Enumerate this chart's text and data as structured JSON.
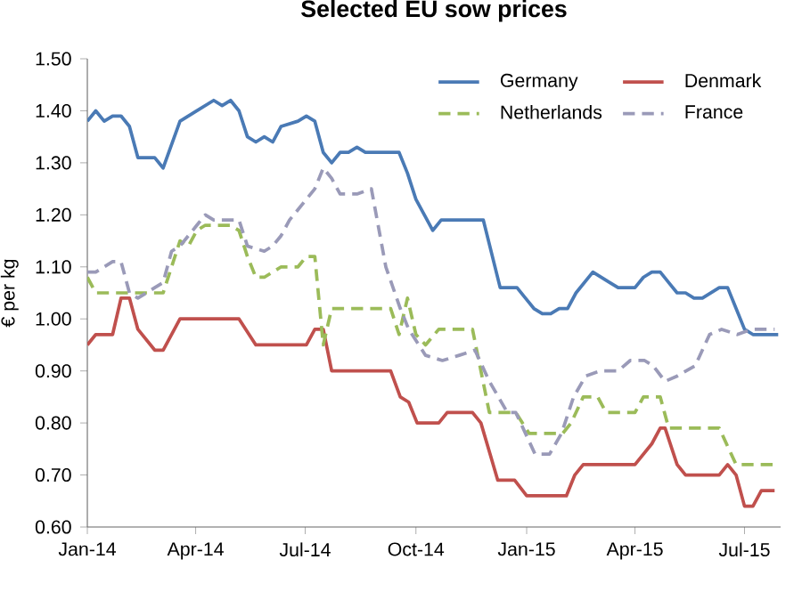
{
  "chart_data": {
    "type": "line",
    "title": "Selected EU sow prices",
    "ylabel": "€ per kg",
    "x": [
      "2014-01-01",
      "2014-01-08",
      "2014-01-15",
      "2014-01-22",
      "2014-01-29",
      "2014-02-05",
      "2014-02-12",
      "2014-02-26",
      "2014-03-05",
      "2014-03-19",
      "2014-04-02",
      "2014-04-16",
      "2014-04-23",
      "2014-04-30",
      "2014-05-07",
      "2014-05-14",
      "2014-05-21",
      "2014-05-28",
      "2014-06-04",
      "2014-06-11",
      "2014-06-25",
      "2014-07-02",
      "2014-07-09",
      "2014-07-16",
      "2014-07-23",
      "2014-07-30",
      "2014-08-06",
      "2014-08-13",
      "2014-08-20",
      "2014-09-17",
      "2014-09-24",
      "2014-10-01",
      "2014-10-08",
      "2014-10-15",
      "2014-10-22",
      "2014-11-26",
      "2014-12-10",
      "2014-12-24",
      "2014-12-31",
      "2015-01-07",
      "2015-01-14",
      "2015-01-21",
      "2015-01-28",
      "2015-02-04",
      "2015-02-11",
      "2015-02-25",
      "2015-03-04",
      "2015-03-11",
      "2015-03-18",
      "2015-04-01",
      "2015-04-08",
      "2015-04-15",
      "2015-04-22",
      "2015-04-29",
      "2015-05-06",
      "2015-05-13",
      "2015-05-20",
      "2015-05-27",
      "2015-06-03",
      "2015-06-10",
      "2015-06-17",
      "2015-06-24",
      "2015-07-01",
      "2015-07-08",
      "2015-07-29"
    ],
    "series": [
      {
        "name": "Germany",
        "color": "#4a7ab5",
        "line_style": "solid",
        "values": [
          1.38,
          1.4,
          1.38,
          1.39,
          1.39,
          1.37,
          1.31,
          1.31,
          1.29,
          1.38,
          1.4,
          1.42,
          1.41,
          1.42,
          1.4,
          1.35,
          1.34,
          1.35,
          1.34,
          1.37,
          1.38,
          1.39,
          1.38,
          1.32,
          1.3,
          1.32,
          1.32,
          1.33,
          1.32,
          1.32,
          1.28,
          1.23,
          1.2,
          1.17,
          1.19,
          1.19,
          1.06,
          1.06,
          1.04,
          1.02,
          1.01,
          1.01,
          1.02,
          1.02,
          1.05,
          1.09,
          1.08,
          1.07,
          1.06,
          1.06,
          1.08,
          1.09,
          1.09,
          1.07,
          1.05,
          1.05,
          1.04,
          1.04,
          1.05,
          1.06,
          1.06,
          1.02,
          0.98,
          0.97,
          0.97
        ]
      },
      {
        "name": "Denmark",
        "color": "#c0504d",
        "line_style": "solid",
        "x": [
          "2014-01-01",
          "2014-01-08",
          "2014-01-22",
          "2014-01-29",
          "2014-02-05",
          "2014-02-12",
          "2014-02-26",
          "2014-03-05",
          "2014-03-19",
          "2014-04-30",
          "2014-05-07",
          "2014-05-21",
          "2014-07-02",
          "2014-07-09",
          "2014-07-16",
          "2014-07-23",
          "2014-09-10",
          "2014-09-18",
          "2014-09-25",
          "2014-10-02",
          "2014-10-20",
          "2014-10-27",
          "2014-11-17",
          "2014-11-24",
          "2014-12-08",
          "2014-12-22",
          "2015-01-01",
          "2015-02-03",
          "2015-02-10",
          "2015-02-17",
          "2015-04-01",
          "2015-04-15",
          "2015-04-22",
          "2015-04-26",
          "2015-05-06",
          "2015-05-13",
          "2015-06-10",
          "2015-06-17",
          "2015-06-24",
          "2015-07-01",
          "2015-07-08",
          "2015-07-15",
          "2015-07-26"
        ],
        "values": [
          0.95,
          0.97,
          0.97,
          1.04,
          1.04,
          0.98,
          0.94,
          0.94,
          1.0,
          1.0,
          1.0,
          0.95,
          0.95,
          0.98,
          0.98,
          0.9,
          0.9,
          0.85,
          0.84,
          0.8,
          0.8,
          0.82,
          0.82,
          0.8,
          0.69,
          0.69,
          0.66,
          0.66,
          0.7,
          0.72,
          0.72,
          0.76,
          0.79,
          0.79,
          0.72,
          0.7,
          0.7,
          0.72,
          0.7,
          0.64,
          0.64,
          0.67,
          0.67
        ]
      },
      {
        "name": "Netherlands",
        "color": "#9bbb59",
        "line_style": "dashed",
        "x": [
          "2014-01-01",
          "2014-01-08",
          "2014-03-05",
          "2014-03-12",
          "2014-03-19",
          "2014-03-26",
          "2014-04-02",
          "2014-04-09",
          "2014-04-30",
          "2014-05-07",
          "2014-05-14",
          "2014-05-21",
          "2014-05-28",
          "2014-06-11",
          "2014-06-25",
          "2014-07-02",
          "2014-07-09",
          "2014-07-16",
          "2014-07-23",
          "2014-09-10",
          "2014-09-17",
          "2014-09-24",
          "2014-10-01",
          "2014-10-09",
          "2014-10-20",
          "2014-11-17",
          "2014-12-01",
          "2014-12-23",
          "2015-01-03",
          "2015-01-31",
          "2015-02-07",
          "2015-02-17",
          "2015-03-01",
          "2015-03-08",
          "2015-04-01",
          "2015-04-08",
          "2015-04-22",
          "2015-04-29",
          "2015-06-10",
          "2015-06-24",
          "2015-07-26"
        ],
        "values": [
          1.08,
          1.05,
          1.05,
          1.1,
          1.15,
          1.14,
          1.17,
          1.18,
          1.18,
          1.17,
          1.12,
          1.08,
          1.08,
          1.1,
          1.1,
          1.12,
          1.12,
          0.95,
          1.02,
          1.02,
          0.97,
          1.04,
          0.97,
          0.95,
          0.98,
          0.98,
          0.82,
          0.82,
          0.78,
          0.78,
          0.8,
          0.85,
          0.85,
          0.82,
          0.82,
          0.85,
          0.85,
          0.79,
          0.79,
          0.72,
          0.72
        ]
      },
      {
        "name": "France",
        "color": "#9a9ab8",
        "line_style": "dashed",
        "x": [
          "2014-01-01",
          "2014-01-08",
          "2014-01-22",
          "2014-01-29",
          "2014-02-05",
          "2014-02-12",
          "2014-02-19",
          "2014-02-26",
          "2014-03-05",
          "2014-03-12",
          "2014-03-19",
          "2014-04-02",
          "2014-04-09",
          "2014-04-16",
          "2014-05-07",
          "2014-05-14",
          "2014-05-28",
          "2014-06-04",
          "2014-06-11",
          "2014-06-18",
          "2014-07-02",
          "2014-07-09",
          "2014-07-16",
          "2014-07-23",
          "2014-07-30",
          "2014-08-13",
          "2014-08-25",
          "2014-09-06",
          "2014-09-18",
          "2014-09-25",
          "2014-10-09",
          "2014-10-23",
          "2014-11-06",
          "2014-11-19",
          "2014-12-01",
          "2014-12-16",
          "2014-12-23",
          "2015-01-08",
          "2015-01-20",
          "2015-01-30",
          "2015-02-09",
          "2015-02-19",
          "2015-03-03",
          "2015-03-18",
          "2015-03-28",
          "2015-04-09",
          "2015-04-16",
          "2015-04-26",
          "2015-05-06",
          "2015-05-21",
          "2015-06-02",
          "2015-06-12",
          "2015-06-25",
          "2015-07-07",
          "2015-07-26"
        ],
        "values": [
          1.09,
          1.09,
          1.11,
          1.11,
          1.05,
          1.04,
          1.05,
          1.06,
          1.07,
          1.13,
          1.14,
          1.18,
          1.2,
          1.19,
          1.19,
          1.14,
          1.13,
          1.14,
          1.16,
          1.19,
          1.23,
          1.25,
          1.29,
          1.27,
          1.24,
          1.24,
          1.25,
          1.1,
          1.02,
          0.98,
          0.93,
          0.92,
          0.93,
          0.94,
          0.88,
          0.82,
          0.82,
          0.74,
          0.74,
          0.78,
          0.85,
          0.89,
          0.9,
          0.9,
          0.92,
          0.92,
          0.91,
          0.88,
          0.89,
          0.91,
          0.97,
          0.98,
          0.97,
          0.98,
          0.98
        ]
      }
    ],
    "xlim": [
      "2014-01-01",
      "2015-07-31"
    ],
    "xticks": [
      {
        "value": "2014-01-01",
        "label": "Jan-14"
      },
      {
        "value": "2014-04-01",
        "label": "Apr-14"
      },
      {
        "value": "2014-07-01",
        "label": "Jul-14"
      },
      {
        "value": "2014-10-01",
        "label": "Oct-14"
      },
      {
        "value": "2015-01-01",
        "label": "Jan-15"
      },
      {
        "value": "2015-04-01",
        "label": "Apr-15"
      },
      {
        "value": "2015-07-01",
        "label": "Jul-15"
      }
    ],
    "ylim": [
      0.6,
      1.5
    ],
    "yticks": [
      {
        "value": 0.6,
        "label": "0.60"
      },
      {
        "value": 0.7,
        "label": "0.70"
      },
      {
        "value": 0.8,
        "label": "0.80"
      },
      {
        "value": 0.9,
        "label": "0.90"
      },
      {
        "value": 1.0,
        "label": "1.00"
      },
      {
        "value": 1.1,
        "label": "1.10"
      },
      {
        "value": 1.2,
        "label": "1.20"
      },
      {
        "value": 1.3,
        "label": "1.30"
      },
      {
        "value": 1.4,
        "label": "1.40"
      },
      {
        "value": 1.5,
        "label": "1.50"
      }
    ],
    "legend": "top right",
    "grid": false,
    "marker": "none"
  }
}
